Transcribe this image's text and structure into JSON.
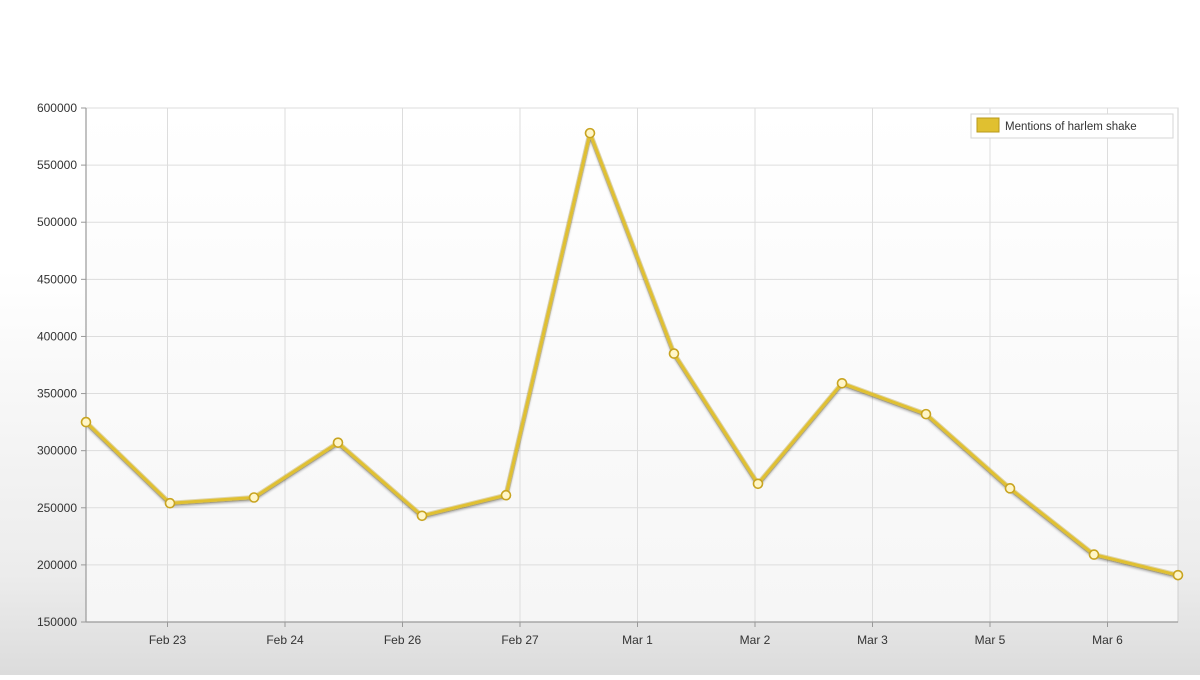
{
  "chart_data": {
    "type": "line",
    "title": "",
    "xlabel": "",
    "ylabel": "",
    "ylim": [
      150000,
      600000
    ],
    "y_ticks": [
      150000,
      200000,
      250000,
      300000,
      350000,
      400000,
      450000,
      500000,
      550000,
      600000
    ],
    "x_tick_labels": [
      "Feb 23",
      "Feb 24",
      "Feb 26",
      "Feb 27",
      "Mar 1",
      "Mar 2",
      "Mar 3",
      "Mar 5",
      "Mar 6"
    ],
    "grid": true,
    "legend_position": "top-right",
    "series": [
      {
        "name": "Mentions of harlem shake",
        "color": "#E0C030",
        "values": [
          325000,
          254000,
          259000,
          307000,
          243000,
          261000,
          578000,
          385000,
          271000,
          359000,
          332000,
          267000,
          209000,
          191000
        ]
      }
    ]
  }
}
